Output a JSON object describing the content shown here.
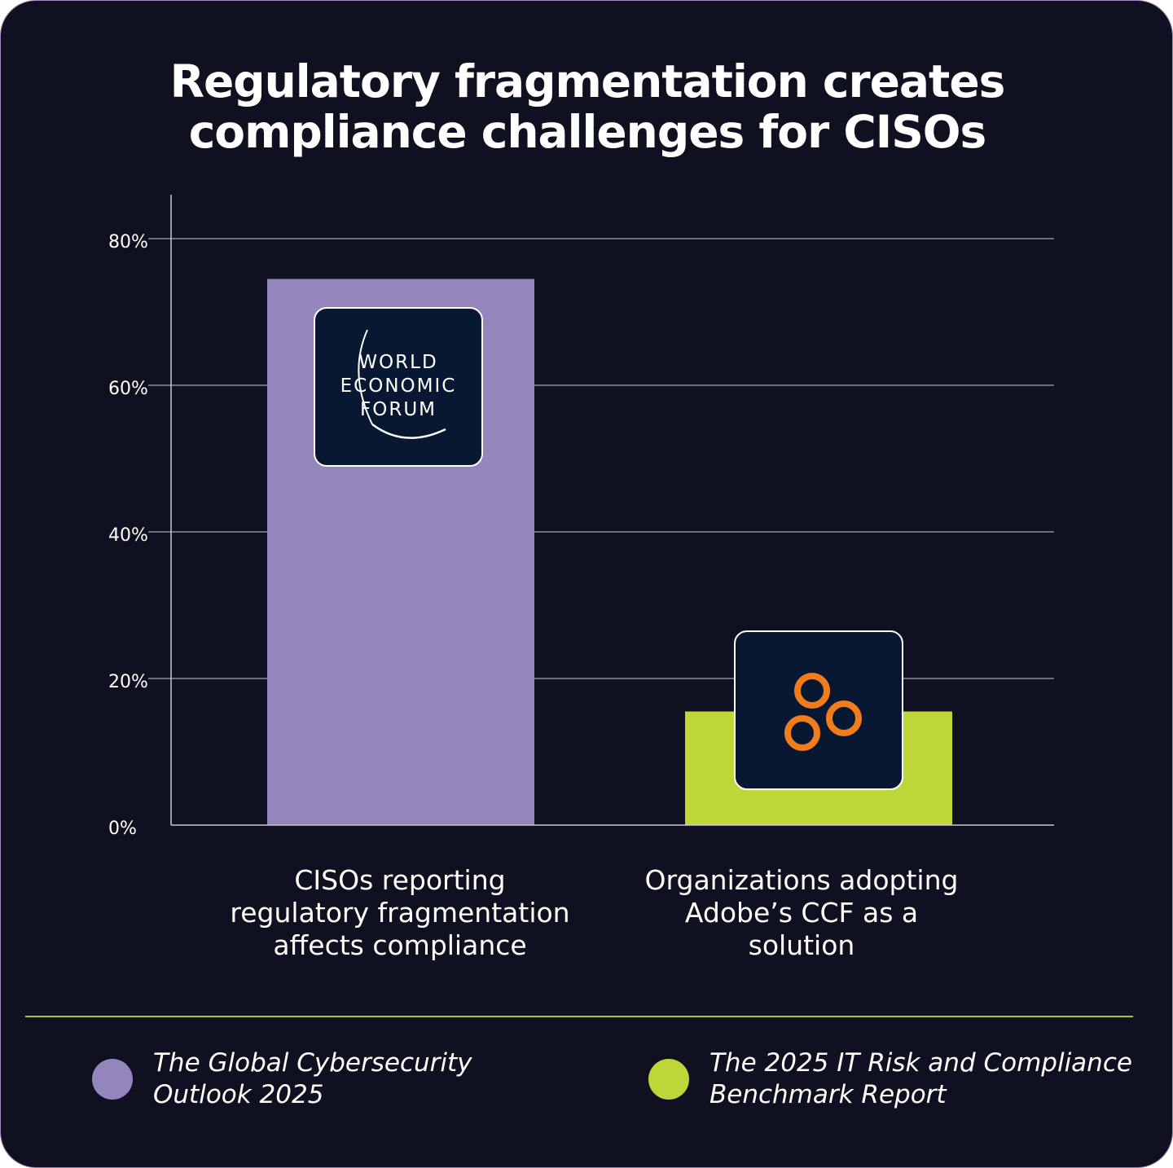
{
  "title_lines": [
    "Regulatory fragmentation creates",
    "compliance challenges for CISOs"
  ],
  "chart_data": {
    "type": "bar",
    "categories": [
      "CISOs reporting regulatory fragmentation affects compliance",
      "Organizations adopting Adobe’s CCF as a solution"
    ],
    "category_label_lines": [
      [
        "CISOs reporting",
        "regulatory fragmentation",
        "affects compliance"
      ],
      [
        "Organizations adopting",
        "Adobe’s CCF as a",
        "solution"
      ]
    ],
    "values": [
      74.5,
      15.5
    ],
    "bar_colors": [
      "#9585bd",
      "#bdd638"
    ],
    "unit": "%",
    "ylim": [
      0,
      80
    ],
    "y_ticks": [
      0,
      20,
      40,
      60,
      80
    ],
    "y_tick_labels": [
      "0%",
      "20%",
      "40%",
      "60%",
      "80%"
    ],
    "grid": true,
    "legend": {
      "placement": "bottom",
      "entries": [
        {
          "lines": [
            "The Global Cybersecurity",
            "Outlook 2025"
          ],
          "color": "#9585bd"
        },
        {
          "lines": [
            "The 2025 IT Risk and Compliance",
            "Benchmark Report"
          ],
          "color": "#bdd638"
        }
      ]
    }
  },
  "logos": {
    "wef": {
      "lines": [
        "WORLD",
        "ECONOMIC",
        "FORUM"
      ],
      "icon": "world-economic-forum-logo"
    },
    "adobe_ccf": {
      "icon": "three-orange-rings-logo",
      "color": "#f07c1e"
    }
  },
  "colors": {
    "background": "#0f1120",
    "divider": "#a8c43a",
    "logo_tile": "#081833"
  }
}
